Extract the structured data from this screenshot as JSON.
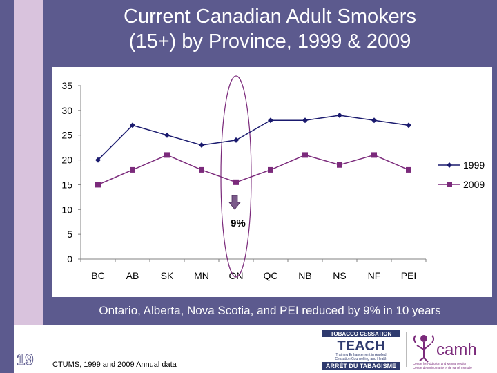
{
  "title_line1": "Current Canadian Adult Smokers",
  "title_line2": "(15+) by Province, 1999 & 2009",
  "caption": "Ontario, Alberta, Nova Scotia, and PEI reduced by 9% in 10 years",
  "slide_number": "19",
  "source": "CTUMS, 1999 and 2009 Annual data",
  "annotation": "9%",
  "logos": {
    "teach_line1": "TOBACCO CESSATION",
    "teach_line2": "TEACH",
    "teach_line3": "Training Enhancement in Applied",
    "teach_line4": "Cessation Counselling and Health",
    "teach_line5": "ARRÊT DU TABAGISME",
    "camh": "camh",
    "camh_sub1": "Centre for Addiction and Mental Health",
    "camh_sub2": "Centre de toxicomanie et de santé mentale"
  },
  "colors": {
    "series_1999": "#1a1a6e",
    "series_2009": "#7b2a7b",
    "background": "#5c5a8e",
    "accent_light": "#d9c3dd"
  },
  "chart_data": {
    "type": "line",
    "categories": [
      "BC",
      "AB",
      "SK",
      "MN",
      "ON",
      "QC",
      "NB",
      "NS",
      "NF",
      "PEI"
    ],
    "series": [
      {
        "name": "1999",
        "values": [
          20,
          27,
          25,
          23,
          24,
          28,
          28,
          29,
          28,
          27
        ]
      },
      {
        "name": "2009",
        "values": [
          15,
          18,
          21,
          18,
          15.5,
          18,
          21,
          19,
          21,
          18
        ]
      }
    ],
    "yticks": [
      "0",
      "5",
      "10",
      "15",
      "20",
      "25",
      "30",
      "35"
    ],
    "ylim": [
      0,
      35
    ],
    "legend": "right",
    "grid": false
  }
}
